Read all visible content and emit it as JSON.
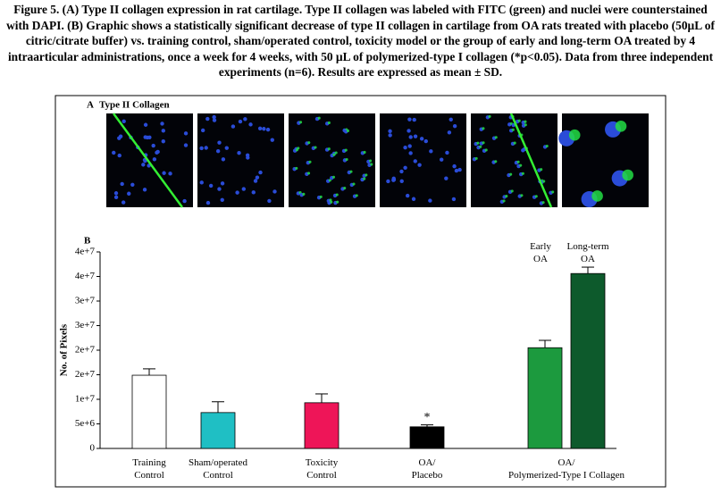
{
  "caption": "Figure 5. (A) Type II collagen expression in rat cartilage. Type II collagen was labeled with FITC (green) and nuclei were counterstained with DAPI. (B) Graphic shows a statistically significant decrease of type II collagen in cartilage from OA rats treated with placebo (50µL of citric/citrate buffer) vs. training control, sham/operated control, toxicity model or the group of early and long-term OA treated by 4 intraarticular administrations, once a week for 4 weeks, with 50 µL of polymerized-type I collagen (*p<0.05). Data from three independent experiments (n=6). Results are expressed as mean ± SD.",
  "panel_a": {
    "label": "A",
    "title": "Type II Collagen"
  },
  "chart_data": {
    "type": "bar",
    "panel_label": "B",
    "ylabel": "No. of Pixels",
    "categories": [
      "Training Control",
      "Sham/operated Control",
      "Toxicity Control",
      "OA/ Placebo",
      "Early OA",
      "Long-term OA"
    ],
    "group_label": "OA/ Polymerized-Type I Collagen",
    "values": [
      14900000,
      7300000,
      9300000,
      4400000,
      20500000,
      35600000
    ],
    "errors": [
      1300000,
      2200000,
      1800000,
      400000,
      1500000,
      1300000
    ],
    "colors": [
      "#ffffff",
      "#1fbfc4",
      "#ee1558",
      "#000000",
      "#1c9a3e",
      "#0d5a2c"
    ],
    "annotation": "*",
    "ylim": [
      0,
      40000000
    ],
    "yticks": [
      0,
      {
        "value": 5000000,
        "label": "5e+6"
      },
      {
        "value": 10000000,
        "label": "1e+7"
      },
      {
        "value": 15000000,
        "label": "2e+7"
      },
      {
        "value": 20000000,
        "label": "2e+7"
      },
      {
        "value": 25000000,
        "label": "3e+7"
      },
      {
        "value": 30000000,
        "label": "3e+7"
      },
      {
        "value": 35000000,
        "label": "4e+7"
      },
      {
        "value": 40000000,
        "label": "4e+7"
      }
    ]
  }
}
